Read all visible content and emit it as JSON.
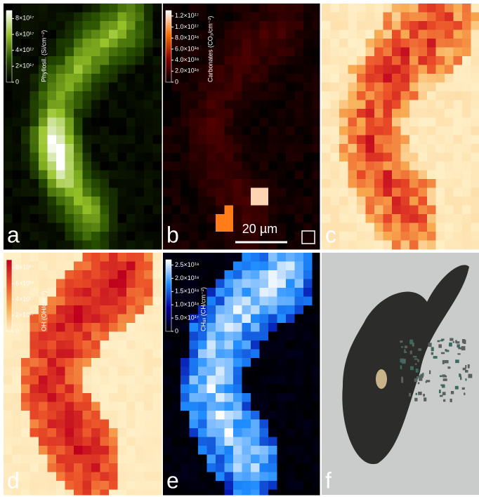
{
  "panels": [
    {
      "letter": "a",
      "colorbar": {
        "label": "Phyllosil. (Si/cm⁻²)",
        "lim": [
          0,
          9e+17
        ],
        "ticks": [
          0,
          {
            "value": 2e+17,
            "label": "2×10¹⁷"
          },
          {
            "value": 4e+17,
            "label": "4×10¹⁷"
          },
          {
            "value": 6e+17,
            "label": "6×10¹⁷"
          },
          {
            "value": 8e+17,
            "label": "8×10¹⁷"
          }
        ]
      }
    },
    {
      "letter": "b",
      "colorbar": {
        "label": "Carbonates (CO₃/cm⁻²)",
        "lim": [
          0,
          1.3e+17
        ],
        "ticks": [
          0,
          {
            "value": 2e+16,
            "label": "2.0×10¹⁶"
          },
          {
            "value": 4e+16,
            "label": "4.0×10¹⁶"
          },
          {
            "value": 6e+16,
            "label": "6.0×10¹⁶"
          },
          {
            "value": 8e+16,
            "label": "8.0×10¹⁶"
          },
          {
            "value": 1e+17,
            "label": "1.0×10¹⁷"
          },
          {
            "value": 1.2e+17,
            "label": "1.2×10¹⁷"
          }
        ]
      },
      "scalebar": "20 µm"
    },
    {
      "letter": "c"
    },
    {
      "letter": "d",
      "colorbar": {
        "label": "OH (OH/cm⁻²)",
        "lim": [
          0,
          9e+17
        ],
        "ticks": [
          0,
          {
            "value": 2e+17,
            "label": "2×10¹⁷"
          },
          {
            "value": 4e+17,
            "label": "4×10¹⁷"
          },
          {
            "value": 6e+17,
            "label": "6×10¹⁷"
          },
          {
            "value": 8e+17,
            "label": "8×10¹⁷"
          }
        ]
      }
    },
    {
      "letter": "e",
      "colorbar": {
        "label": "CHₐₗᵢ (CH/cm⁻²)",
        "lim": [
          0,
          2.7e+18
        ],
        "ticks": [
          0,
          {
            "value": 5e+17,
            "label": "5.0×10¹⁷"
          },
          {
            "value": 1e+18,
            "label": "1.0×10¹⁸"
          },
          {
            "value": 1.5e+18,
            "label": "1.5×10¹⁸"
          },
          {
            "value": 2e+18,
            "label": "2.0×10¹⁸"
          },
          {
            "value": 2.5e+18,
            "label": "2.5×10¹⁸"
          }
        ]
      }
    },
    {
      "letter": "f"
    }
  ]
}
